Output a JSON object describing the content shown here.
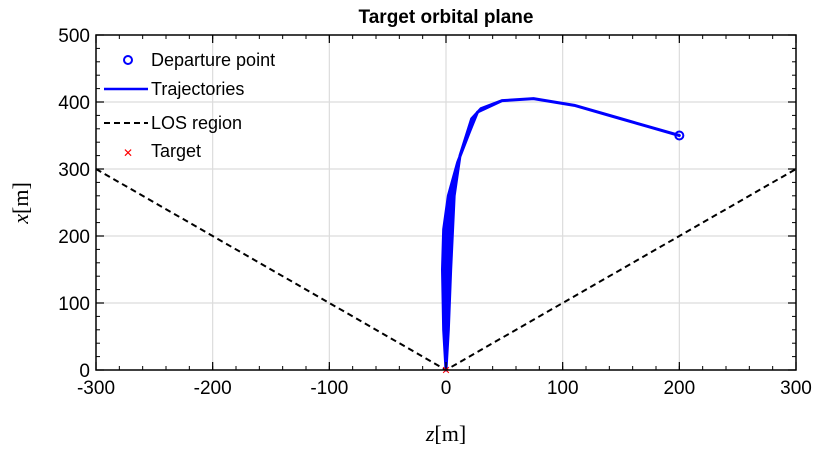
{
  "chart_data": {
    "type": "line",
    "title": "Target orbital plane",
    "xlabel": {
      "var": "z",
      "unit": "[m]"
    },
    "ylabel": {
      "var": "x",
      "unit": "[m]"
    },
    "xlim": [
      -300,
      300
    ],
    "ylim": [
      0,
      500
    ],
    "xticks": [
      -300,
      -200,
      -100,
      0,
      100,
      200,
      300
    ],
    "yticks": [
      0,
      100,
      200,
      300,
      400,
      500
    ],
    "grid": true,
    "legend_position": "top-left",
    "colors": {
      "trajectory": "#0000ff",
      "los": "#000000",
      "target": "#ff0000",
      "departure": "#0000ff"
    },
    "series": [
      {
        "name": "Departure point",
        "kind": "marker-circle",
        "points": [
          [
            200,
            350
          ]
        ]
      },
      {
        "name": "Trajectories",
        "kind": "band",
        "outer": [
          [
            200,
            350
          ],
          [
            150,
            375
          ],
          [
            110,
            395
          ],
          [
            75,
            405
          ],
          [
            48,
            402
          ],
          [
            30,
            390
          ],
          [
            22,
            375
          ],
          [
            12,
            320
          ],
          [
            7,
            260
          ],
          [
            4,
            150
          ],
          [
            2,
            60
          ],
          [
            0,
            0
          ]
        ],
        "inner": [
          [
            0,
            0
          ],
          [
            -2,
            60
          ],
          [
            -3,
            150
          ],
          [
            -2,
            210
          ],
          [
            2,
            260
          ],
          [
            10,
            310
          ],
          [
            20,
            355
          ],
          [
            27,
            385
          ],
          [
            48,
            402
          ],
          [
            75,
            405
          ],
          [
            110,
            395
          ],
          [
            150,
            375
          ],
          [
            200,
            350
          ]
        ]
      },
      {
        "name": "LOS region",
        "kind": "dashed",
        "points": [
          [
            -300,
            300
          ],
          [
            0,
            0
          ],
          [
            300,
            300
          ]
        ]
      },
      {
        "name": "Target",
        "kind": "marker-x",
        "points": [
          [
            0,
            0
          ]
        ]
      }
    ]
  }
}
